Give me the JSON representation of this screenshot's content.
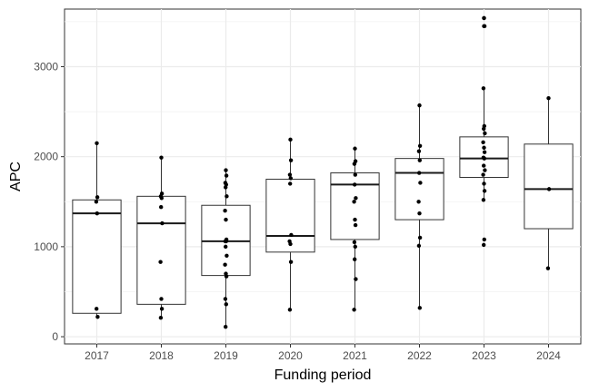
{
  "chart_data": {
    "type": "box",
    "xlabel": "Funding period",
    "ylabel": "APC",
    "ylim": [
      -80,
      3640
    ],
    "y_ticks": [
      0,
      1000,
      2000,
      3000
    ],
    "y_tick_labels": [
      "0",
      "1000",
      "2000",
      "3000"
    ],
    "categories": [
      "2017",
      "2018",
      "2019",
      "2020",
      "2021",
      "2022",
      "2023",
      "2024"
    ],
    "grid": true,
    "boxes": [
      {
        "category": "2017",
        "min": 220,
        "q1": 260,
        "median": 1370,
        "q3": 1520,
        "max": 2150
      },
      {
        "category": "2018",
        "min": 210,
        "q1": 360,
        "median": 1260,
        "q3": 1560,
        "max": 1990
      },
      {
        "category": "2019",
        "min": 110,
        "q1": 680,
        "median": 1060,
        "q3": 1460,
        "max": 1850
      },
      {
        "category": "2020",
        "min": 300,
        "q1": 940,
        "median": 1120,
        "q3": 1750,
        "max": 2190
      },
      {
        "category": "2021",
        "min": 300,
        "q1": 1080,
        "median": 1690,
        "q3": 1820,
        "max": 2090
      },
      {
        "category": "2022",
        "min": 320,
        "q1": 1300,
        "median": 1820,
        "q3": 1980,
        "max": 2570
      },
      {
        "category": "2023",
        "min": 1520,
        "q1": 1770,
        "median": 1980,
        "q3": 2220,
        "max": 2760,
        "outliers": [
          3450,
          3540
        ]
      },
      {
        "category": "2024",
        "min": 760,
        "q1": 1200,
        "median": 1640,
        "q3": 2140,
        "max": 2650
      }
    ],
    "points": [
      {
        "category": "2017",
        "values": [
          2150,
          1550,
          1500,
          1370,
          310,
          220
        ]
      },
      {
        "category": "2018",
        "values": [
          1990,
          1590,
          1560,
          1540,
          1440,
          1260,
          830,
          420,
          310,
          210
        ]
      },
      {
        "category": "2019",
        "values": [
          1850,
          1790,
          1710,
          1690,
          1660,
          1560,
          1400,
          1300,
          1080,
          1060,
          1060,
          1000,
          900,
          800,
          700,
          670,
          420,
          360,
          110
        ]
      },
      {
        "category": "2020",
        "values": [
          2190,
          1960,
          1800,
          1760,
          1700,
          1130,
          1060,
          1030,
          830,
          300
        ]
      },
      {
        "category": "2021",
        "values": [
          2090,
          1950,
          1920,
          1800,
          1690,
          1540,
          1500,
          1300,
          1240,
          1050,
          1000,
          860,
          640,
          300
        ]
      },
      {
        "category": "2022",
        "values": [
          2570,
          2120,
          2060,
          1960,
          1820,
          1710,
          1500,
          1370,
          1100,
          1010,
          320
        ]
      },
      {
        "category": "2023",
        "values": [
          3540,
          3450,
          2760,
          2340,
          2310,
          2260,
          2160,
          2100,
          2050,
          1990,
          1980,
          1900,
          1850,
          1800,
          1700,
          1620,
          1520,
          1080,
          1020
        ]
      },
      {
        "category": "2024",
        "values": [
          2650,
          1640,
          760
        ]
      }
    ]
  }
}
